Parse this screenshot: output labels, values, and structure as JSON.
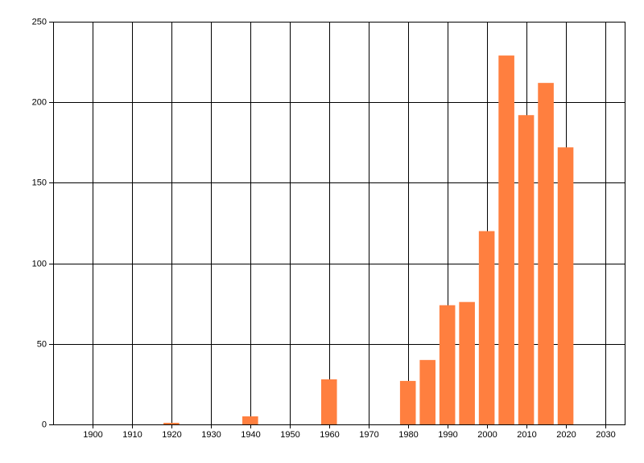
{
  "chart_data": {
    "type": "bar",
    "color": "#ff7f3f",
    "grid": true,
    "x": [
      1920,
      1940,
      1960,
      1980,
      1985,
      1990,
      1995,
      2000,
      2005,
      2010,
      2015,
      2020
    ],
    "values": [
      1,
      5,
      28,
      27,
      40,
      74,
      76,
      120,
      229,
      192,
      212,
      172
    ],
    "xlim": [
      1890,
      2035
    ],
    "xticks": [
      1900,
      1910,
      1920,
      1930,
      1940,
      1950,
      1960,
      1970,
      1980,
      1990,
      2000,
      2010,
      2020,
      2030
    ],
    "ylim": [
      0,
      250
    ],
    "yticks": [
      0,
      50,
      100,
      150,
      200,
      250
    ]
  }
}
